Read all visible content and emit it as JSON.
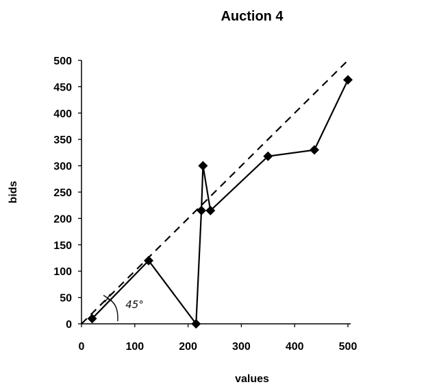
{
  "chart_data": {
    "type": "line",
    "title": "Auction 4",
    "xlabel": "values",
    "ylabel": "bids",
    "xlim": [
      0,
      500
    ],
    "ylim": [
      0,
      500
    ],
    "x_ticks": [
      0,
      100,
      200,
      300,
      400,
      500
    ],
    "y_ticks": [
      0,
      50,
      100,
      150,
      200,
      250,
      300,
      350,
      400,
      450,
      500
    ],
    "grid": false,
    "legend": "none",
    "series": [
      {
        "style": "solid-with-diamond-markers",
        "color": "#000000",
        "points": [
          {
            "x": 20,
            "y": 10
          },
          {
            "x": 126,
            "y": 120
          },
          {
            "x": 215,
            "y": 0
          },
          {
            "x": 225,
            "y": 215
          },
          {
            "x": 228,
            "y": 300
          },
          {
            "x": 242,
            "y": 215
          },
          {
            "x": 350,
            "y": 318
          },
          {
            "x": 437,
            "y": 330
          },
          {
            "x": 500,
            "y": 463
          }
        ]
      },
      {
        "style": "dashed-45-degree-line",
        "color": "#000000",
        "points": [
          {
            "x": 0,
            "y": 0
          },
          {
            "x": 500,
            "y": 500
          }
        ]
      }
    ],
    "annotations": [
      {
        "text": "45°",
        "x": 80,
        "y": 30
      }
    ]
  }
}
